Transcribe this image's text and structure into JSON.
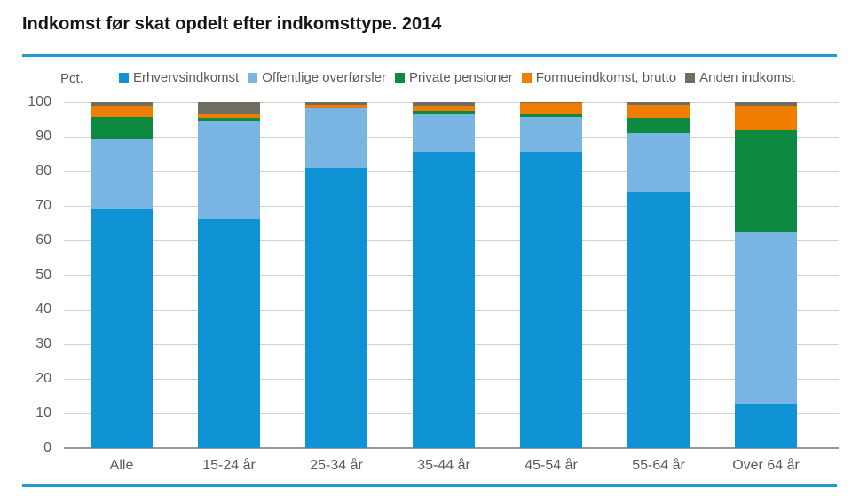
{
  "page": {
    "title": "Indkomst før skat opdelt efter indkomsttype. 2014"
  },
  "colors": {
    "rule_blue": "#1e9bd7",
    "grid": "#d2d1c9",
    "axis": "#9b998e",
    "muted_text": "#595959",
    "title_text": "#141414"
  },
  "chart_data": {
    "type": "bar",
    "stacked": true,
    "title": "Indkomst før skat opdelt efter indkomsttype. 2014",
    "ylabel": "Pct.",
    "xlabel": "",
    "ylim": [
      0,
      100
    ],
    "y_ticks": [
      0,
      10,
      20,
      30,
      40,
      50,
      60,
      70,
      80,
      90,
      100
    ],
    "grid": true,
    "legend_position": "top",
    "categories": [
      "Alle",
      "15-24 år",
      "25-34 år",
      "35-44 år",
      "45-54 år",
      "55-64 år",
      "Over 64 år"
    ],
    "series": [
      {
        "name": "Erhvervsindkomst",
        "color": "#0f93d4",
        "values": [
          69.0,
          66.2,
          81.0,
          85.7,
          85.6,
          74.1,
          12.8
        ]
      },
      {
        "name": "Offentlige overførsler",
        "color": "#79b5e3",
        "values": [
          20.3,
          28.4,
          17.1,
          11.0,
          10.0,
          16.9,
          49.4
        ]
      },
      {
        "name": "Private pensioner",
        "color": "#0d8a40",
        "values": [
          6.4,
          0.7,
          0.2,
          0.8,
          1.0,
          4.3,
          29.7
        ]
      },
      {
        "name": "Formueindkomst, brutto",
        "color": "#ef7d00",
        "values": [
          3.3,
          1.1,
          1.0,
          1.5,
          3.1,
          4.0,
          7.2
        ]
      },
      {
        "name": "Anden indkomst",
        "color": "#6f6e61",
        "values": [
          1.0,
          3.6,
          0.7,
          1.0,
          0.3,
          0.7,
          0.9
        ]
      }
    ]
  }
}
